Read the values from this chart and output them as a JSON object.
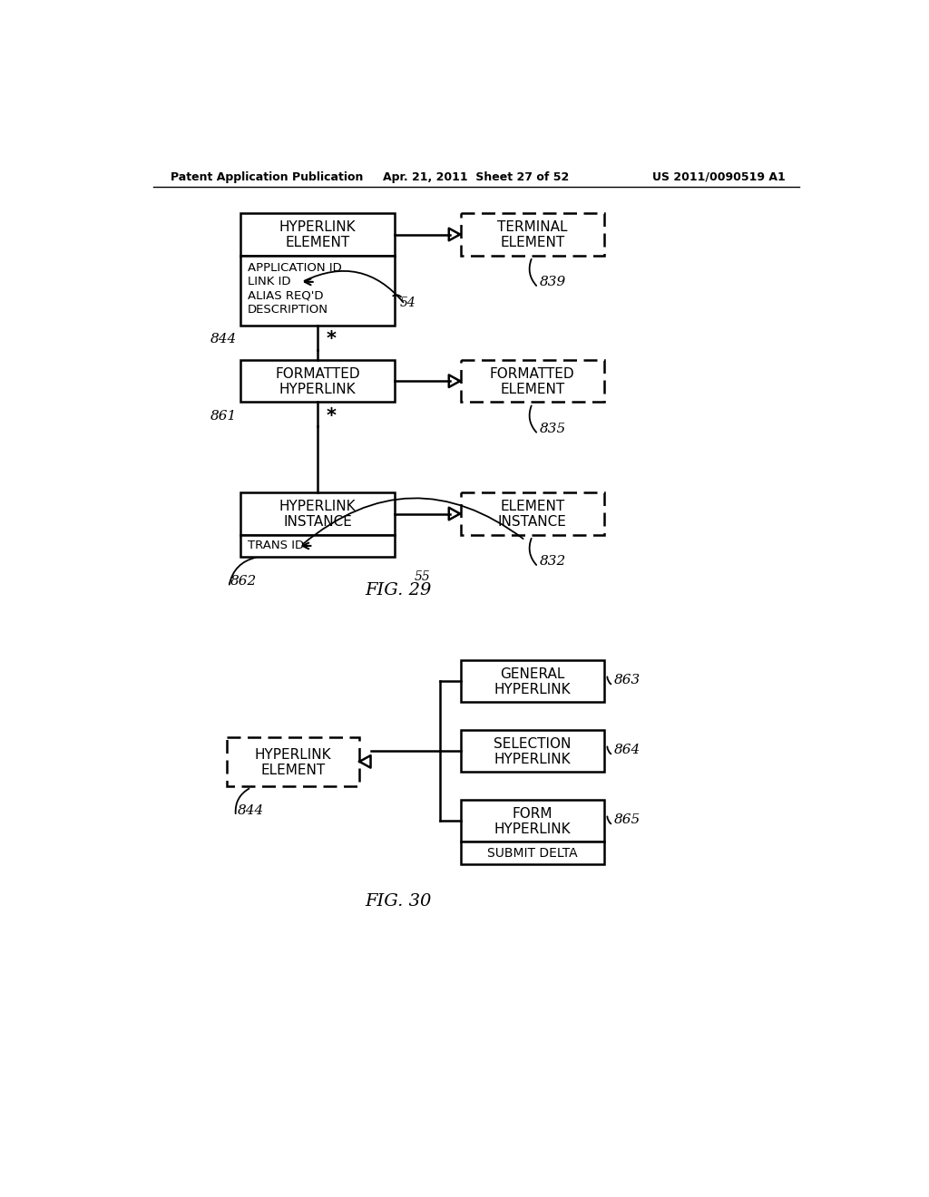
{
  "header_left": "Patent Application Publication",
  "header_mid": "Apr. 21, 2011  Sheet 27 of 52",
  "header_right": "US 2011/0090519 A1",
  "fig29_label": "FIG. 29",
  "fig30_label": "FIG. 30",
  "bg_color": "#ffffff",
  "text_color": "#000000"
}
